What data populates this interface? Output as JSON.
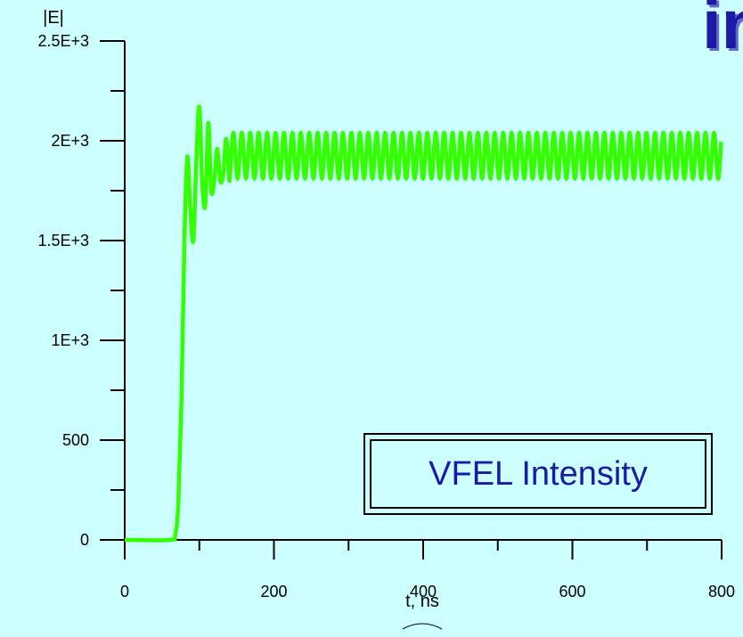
{
  "slide": {
    "title_fragment": "in"
  },
  "annotation": {
    "text": "VFEL Intensity"
  },
  "colors": {
    "background": "#ccffff",
    "series": "#33ff00",
    "axis": "#000000",
    "title_text": "#1a1aa6"
  },
  "chart_data": {
    "type": "line",
    "title": "",
    "xlabel": "t, ns",
    "ylabel": "|E|",
    "xlim": [
      0,
      800
    ],
    "ylim": [
      0,
      2500
    ],
    "xticks": [
      0,
      200,
      400,
      600,
      800
    ],
    "xtick_labels": [
      "0",
      "200",
      "400",
      "600",
      "800"
    ],
    "yticks": [
      0,
      500,
      1000,
      1500,
      2000,
      2500
    ],
    "ytick_labels": [
      "0",
      "500",
      "1E+3",
      "1.5E+3",
      "2E+3",
      "2.5E+3"
    ],
    "grid": false,
    "legend": "none",
    "series": [
      {
        "color": "#33ff00",
        "x": [
          0,
          60,
          68,
          72,
          76,
          80,
          84,
          88,
          92,
          96,
          100,
          104,
          108,
          112,
          116,
          120,
          124,
          128,
          132,
          136,
          140,
          150,
          160,
          170,
          180,
          200,
          250,
          300,
          350,
          400,
          450,
          500,
          550,
          600,
          650,
          700,
          750,
          800
        ],
        "y": [
          0,
          0,
          30,
          200,
          700,
          1500,
          1920,
          1650,
          1500,
          1900,
          2170,
          1780,
          1680,
          2090,
          1750,
          1800,
          1960,
          1800,
          1830,
          2010,
          1810,
          2030,
          1810,
          2040,
          1800,
          2040,
          1810,
          2050,
          1800,
          2040,
          1800,
          2050,
          1800,
          2040,
          1800,
          2050,
          1800,
          1880
        ]
      }
    ],
    "oscillation_period_ns": 11.3,
    "oscillation_center": 1925,
    "oscillation_amplitude": 115
  }
}
